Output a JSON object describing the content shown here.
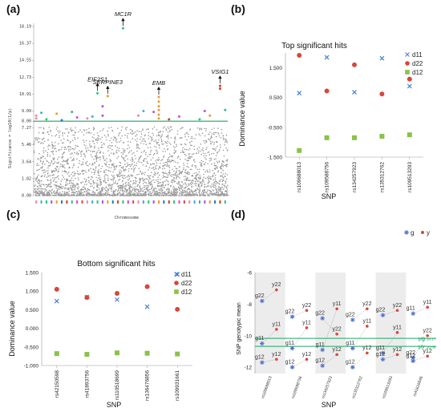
{
  "panels": {
    "a": "(a)",
    "b": "(b)",
    "c": "(c)",
    "d": "(d)"
  },
  "colors": {
    "d11": "#4a7fd0",
    "d22": "#d9463a",
    "d12": "#8ac249",
    "green_line": "#1aa865",
    "band": "#ececec"
  },
  "chart_data": [
    {
      "type": "scatter",
      "panel": "a",
      "ylabel": "Significance = log10(1/p)",
      "xlabel": "Chromosome",
      "yticks": [
        "0.00",
        "1.82",
        "3.64",
        "5.46",
        "7.27",
        "8.00",
        "9.09",
        "10.91",
        "12.73",
        "14.55",
        "16.37",
        "18.19"
      ],
      "ylim": [
        0,
        18.19
      ],
      "threshold": 8.0,
      "chromosomes": 38,
      "chromosome_colors": [
        "#d44",
        "#e8a",
        "#4ad",
        "#2c7",
        "#a5d",
        "#e93",
        "#27c",
        "#c42",
        "#3b8",
        "#d4d"
      ],
      "significant_points": [
        {
          "chrom": 1,
          "y": 8.3
        },
        {
          "chrom": 1,
          "y": 8.6
        },
        {
          "chrom": 2,
          "y": 8.9
        },
        {
          "chrom": 3,
          "y": 8.2
        },
        {
          "chrom": 5,
          "y": 8.8
        },
        {
          "chrom": 6,
          "y": 8.1
        },
        {
          "chrom": 8,
          "y": 9.0
        },
        {
          "chrom": 9,
          "y": 8.4
        },
        {
          "chrom": 11,
          "y": 8.3
        },
        {
          "chrom": 12,
          "y": 8.5
        },
        {
          "chrom": 13,
          "y": 11.0
        },
        {
          "chrom": 14,
          "y": 9.6
        },
        {
          "chrom": 14,
          "y": 8.6
        },
        {
          "chrom": 15,
          "y": 10.7
        },
        {
          "chrom": 18,
          "y": 18.0
        },
        {
          "chrom": 21,
          "y": 8.6
        },
        {
          "chrom": 22,
          "y": 9.1
        },
        {
          "chrom": 24,
          "y": 9.0
        },
        {
          "chrom": 25,
          "y": 10.6
        },
        {
          "chrom": 25,
          "y": 10.1
        },
        {
          "chrom": 25,
          "y": 9.6
        },
        {
          "chrom": 25,
          "y": 9.2
        },
        {
          "chrom": 25,
          "y": 8.7
        },
        {
          "chrom": 25,
          "y": 8.3
        },
        {
          "chrom": 27,
          "y": 8.2
        },
        {
          "chrom": 29,
          "y": 8.5
        },
        {
          "chrom": 33,
          "y": 8.2
        },
        {
          "chrom": 34,
          "y": 9.1
        },
        {
          "chrom": 35,
          "y": 8.6
        },
        {
          "chrom": 37,
          "y": 11.8
        },
        {
          "chrom": 37,
          "y": 11.5
        },
        {
          "chrom": 38,
          "y": 9.2
        }
      ],
      "annotations": [
        {
          "label": "MC1R",
          "chrom": 18,
          "y": 18.0
        },
        {
          "label": "EIF2S1",
          "chrom": 13,
          "y": 11.0
        },
        {
          "label": "SERPINE3",
          "chrom": 15,
          "y": 10.7
        },
        {
          "label": "EMB",
          "chrom": 25,
          "y": 10.6
        },
        {
          "label": "VSIG1",
          "chrom": 37,
          "y": 11.8
        }
      ]
    },
    {
      "type": "scatter",
      "panel": "b",
      "title": "Top significant hits",
      "xlabel": "SNP",
      "ylabel": "Dominance value",
      "ylim": [
        -1.5,
        2.0
      ],
      "yticks": [
        "-1.500",
        "-0.500",
        "0.500",
        "1.500"
      ],
      "ytick_values": [
        -1.5,
        -0.5,
        0.5,
        1.5
      ],
      "categories": [
        "rs109688013",
        "rs109588756",
        "rs134257923",
        "rs135312762",
        "rs109513293"
      ],
      "series": [
        {
          "name": "d11",
          "values": [
            0.65,
            1.85,
            0.68,
            1.82,
            0.88
          ]
        },
        {
          "name": "d22",
          "values": [
            1.92,
            0.72,
            1.6,
            0.62,
            1.12
          ]
        },
        {
          "name": "d12",
          "values": [
            -1.28,
            -0.85,
            -0.85,
            -0.8,
            -0.75
          ]
        }
      ],
      "legend": "top-right"
    },
    {
      "type": "scatter",
      "panel": "c",
      "title": "Bottom significant hits",
      "xlabel": "SNP",
      "ylabel": "Dominance value",
      "ylim": [
        -1.0,
        1.5
      ],
      "yticks": [
        "-1.000",
        "-0.500",
        "0.000",
        "0.500",
        "1.000",
        "1.500"
      ],
      "ytick_values": [
        -1.0,
        -0.5,
        0.0,
        0.5,
        1.0,
        1.5
      ],
      "categories": [
        "rs42150598",
        "rs41893756",
        "rs110518699",
        "rs136476856",
        "rs109931661"
      ],
      "series": [
        {
          "name": "d11",
          "values": [
            0.73,
            0.84,
            0.77,
            0.58,
            1.45
          ]
        },
        {
          "name": "d22",
          "values": [
            1.05,
            0.83,
            0.94,
            1.12,
            0.51
          ]
        },
        {
          "name": "d12",
          "values": [
            -0.68,
            -0.7,
            -0.66,
            -0.67,
            -0.69
          ]
        }
      ],
      "legend": "top-right"
    },
    {
      "type": "scatter",
      "panel": "d",
      "xlabel": "SNP",
      "ylabel": "SNP genotypic mean",
      "ylim": [
        -12.4,
        -6
      ],
      "yticks": [
        "-6",
        "-8",
        "-10",
        "-12"
      ],
      "ytick_values": [
        -6,
        -8,
        -10,
        -12
      ],
      "categories": [
        "rs109688013",
        "rs109588756",
        "rs134257923",
        "rs135312762",
        "rs109513293",
        "rs41616846"
      ],
      "mu_lines": [
        {
          "label": "μg",
          "value_label": "10.17",
          "y": -10.17
        },
        {
          "label": "μy",
          "value_label": "10.68",
          "y": -10.68
        }
      ],
      "legend": [
        "g",
        "y"
      ],
      "series": [
        {
          "name": "g",
          "points": [
            {
              "cat": 0,
              "label": "g22",
              "y": -7.8
            },
            {
              "cat": 0,
              "label": "g11",
              "y": -10.5
            },
            {
              "cat": 0,
              "label": "g12",
              "y": -11.7
            },
            {
              "cat": 1,
              "label": "g22",
              "y": -8.8
            },
            {
              "cat": 1,
              "label": "g11",
              "y": -10.8
            },
            {
              "cat": 1,
              "label": "g12",
              "y": -12.0
            },
            {
              "cat": 2,
              "label": "g22",
              "y": -8.9
            },
            {
              "cat": 2,
              "label": "g11",
              "y": -10.9
            },
            {
              "cat": 2,
              "label": "g12",
              "y": -11.9
            },
            {
              "cat": 3,
              "label": "g22",
              "y": -9.0
            },
            {
              "cat": 3,
              "label": "g11",
              "y": -10.8
            },
            {
              "cat": 3,
              "label": "g12",
              "y": -12.0
            },
            {
              "cat": 4,
              "label": "g22",
              "y": -8.7
            },
            {
              "cat": 4,
              "label": "g11",
              "y": -11.1
            },
            {
              "cat": 4,
              "label": "g12",
              "y": -11.5
            },
            {
              "cat": 5,
              "label": "g11",
              "y": -8.6
            },
            {
              "cat": 5,
              "label": "g22",
              "y": -11.4
            },
            {
              "cat": 5,
              "label": "g12",
              "y": -11.6
            }
          ]
        },
        {
          "name": "y",
          "points": [
            {
              "cat": 0,
              "label": "y22",
              "y": -7.1
            },
            {
              "cat": 0,
              "label": "y11",
              "y": -9.6
            },
            {
              "cat": 0,
              "label": "y12",
              "y": -11.5
            },
            {
              "cat": 1,
              "label": "y22",
              "y": -8.4
            },
            {
              "cat": 1,
              "label": "y11",
              "y": -9.5
            },
            {
              "cat": 1,
              "label": "y12",
              "y": -11.5
            },
            {
              "cat": 2,
              "label": "y11",
              "y": -8.3
            },
            {
              "cat": 2,
              "label": "y22",
              "y": -9.9
            },
            {
              "cat": 2,
              "label": "y12",
              "y": -11.2
            },
            {
              "cat": 3,
              "label": "y22",
              "y": -8.3
            },
            {
              "cat": 3,
              "label": "y11",
              "y": -9.4
            },
            {
              "cat": 3,
              "label": "y12",
              "y": -11.1
            },
            {
              "cat": 4,
              "label": "y22",
              "y": -8.4
            },
            {
              "cat": 4,
              "label": "y11",
              "y": -9.8
            },
            {
              "cat": 4,
              "label": "y12",
              "y": -11.2
            },
            {
              "cat": 5,
              "label": "y11",
              "y": -8.2
            },
            {
              "cat": 5,
              "label": "y22",
              "y": -10.0
            },
            {
              "cat": 5,
              "label": "y12",
              "y": -11.3
            }
          ]
        }
      ]
    }
  ]
}
